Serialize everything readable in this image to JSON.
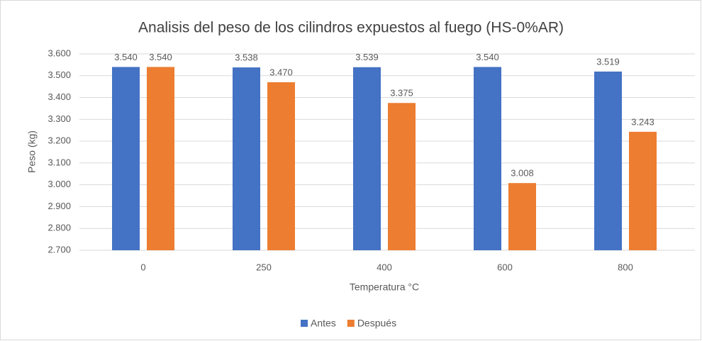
{
  "chart_data": {
    "type": "bar",
    "title": "Analisis del peso de los cilindros expuestos al fuego (HS-0%AR)",
    "x_label": "Temperatura °C",
    "y_label": "Peso (kg)",
    "categories": [
      "0",
      "250",
      "400",
      "600",
      "800"
    ],
    "series": [
      {
        "name": "Antes",
        "color": "#4472c4",
        "values": [
          3.54,
          3.538,
          3.539,
          3.54,
          3.519
        ],
        "value_labels": [
          "3.540",
          "3.538",
          "3.539",
          "3.540",
          "3.519"
        ]
      },
      {
        "name": "Después",
        "color": "#ed7d31",
        "values": [
          3.54,
          3.47,
          3.375,
          3.008,
          3.243
        ],
        "value_labels": [
          "3.540",
          "3.470",
          "3.375",
          "3.008",
          "3.243"
        ]
      }
    ],
    "ylim": [
      2.7,
      3.6
    ],
    "yticks": [
      {
        "value": 2.7,
        "label": "2.700"
      },
      {
        "value": 2.8,
        "label": "2.800"
      },
      {
        "value": 2.9,
        "label": "2.900"
      },
      {
        "value": 3.0,
        "label": "3.000"
      },
      {
        "value": 3.1,
        "label": "3.100"
      },
      {
        "value": 3.2,
        "label": "3.200"
      },
      {
        "value": 3.3,
        "label": "3.300"
      },
      {
        "value": 3.4,
        "label": "3.400"
      },
      {
        "value": 3.5,
        "label": "3.500"
      },
      {
        "value": 3.6,
        "label": "3.600"
      }
    ],
    "grid": true,
    "legend": "bottom"
  }
}
